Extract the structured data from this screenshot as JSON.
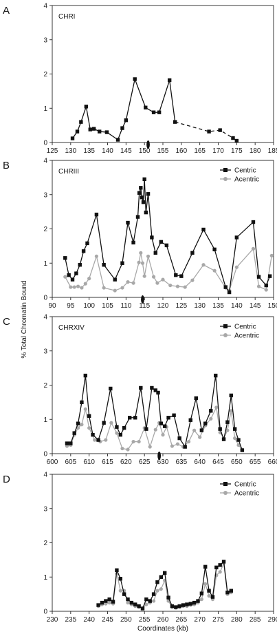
{
  "ylabel": "% Total Chromatin Bound",
  "xlabel": "Coordinates (kb)",
  "colors": {
    "centric": "#111111",
    "acentric": "#a8a8a8"
  },
  "chart_data": [
    {
      "type": "line",
      "panel": "A",
      "title": "CHRI",
      "xlim": [
        125,
        185
      ],
      "ylim": [
        0,
        4
      ],
      "xticks": [
        125,
        130,
        135,
        140,
        145,
        150,
        155,
        160,
        165,
        170,
        175,
        180,
        185
      ],
      "yticks": [
        0,
        1,
        2,
        3,
        4
      ],
      "centromere": 151,
      "legend": null,
      "series": [
        {
          "key": "centric",
          "name": "",
          "color": "#111111",
          "marker": "square",
          "x": [
            130.5,
            131.8,
            132.8,
            134.2,
            135.3,
            136.3,
            137.8,
            139.8,
            142.8,
            144.0,
            145.0,
            147.4,
            150.3,
            152.5,
            154.0,
            156.8,
            158.3,
            167.5,
            170.5,
            174.0,
            175.0
          ],
          "y": [
            0.12,
            0.32,
            0.6,
            1.05,
            0.38,
            0.4,
            0.32,
            0.3,
            0.08,
            0.42,
            0.65,
            1.85,
            1.02,
            0.88,
            0.88,
            1.82,
            0.6,
            0.32,
            0.36,
            0.13,
            0.05
          ],
          "dashed_after": 16
        }
      ]
    },
    {
      "type": "line",
      "panel": "B",
      "title": "CHRIII",
      "xlim": [
        90,
        150
      ],
      "ylim": [
        0,
        4
      ],
      "xticks": [
        90,
        95,
        100,
        105,
        110,
        115,
        120,
        125,
        130,
        135,
        140,
        145,
        150
      ],
      "yticks": [
        0,
        1,
        2,
        3,
        4
      ],
      "centromere": 114.5,
      "legend": [
        "Centric",
        "Acentric"
      ],
      "series": [
        {
          "key": "centric",
          "name": "Centric",
          "color": "#111111",
          "marker": "square",
          "x": [
            93.5,
            94.5,
            95.5,
            96.5,
            97.5,
            98.5,
            99.5,
            102.0,
            104.0,
            107.0,
            109.0,
            110.5,
            112.0,
            113.2,
            113.6,
            114.0,
            114.3,
            114.7,
            115.0,
            115.4,
            116.0,
            117.0,
            118.0,
            119.5,
            121.0,
            123.5,
            125.0,
            128.0,
            131.0,
            134.0,
            137.0,
            138.0,
            140.0,
            144.5,
            146.0,
            148.0,
            149.0
          ],
          "y": [
            1.15,
            0.65,
            0.52,
            0.7,
            0.95,
            1.35,
            1.58,
            2.42,
            0.95,
            0.52,
            1.0,
            2.18,
            1.6,
            2.35,
            3.05,
            3.2,
            2.92,
            2.78,
            3.45,
            2.48,
            3.02,
            1.75,
            1.3,
            1.62,
            1.52,
            0.65,
            0.62,
            1.3,
            1.98,
            1.4,
            0.3,
            0.15,
            1.75,
            2.2,
            0.6,
            0.35,
            0.62
          ]
        },
        {
          "key": "acentric",
          "name": "Acentric",
          "color": "#a8a8a8",
          "marker": "circle",
          "x": [
            93.5,
            95.0,
            96.0,
            97.0,
            98.0,
            99.0,
            100.0,
            102.0,
            104.0,
            107.0,
            109.0,
            110.5,
            112.0,
            113.5,
            114.0,
            114.5,
            115.0,
            116.0,
            117.5,
            118.5,
            120.0,
            122.0,
            124.0,
            126.0,
            128.0,
            131.0,
            134.0,
            137.0,
            138.0,
            140.0,
            144.5,
            146.0,
            148.0,
            149.5
          ],
          "y": [
            0.6,
            0.3,
            0.3,
            0.32,
            0.28,
            0.4,
            0.55,
            1.2,
            0.28,
            0.2,
            0.28,
            0.45,
            0.42,
            1.02,
            1.3,
            1.0,
            0.62,
            1.2,
            0.6,
            0.42,
            0.52,
            0.35,
            0.32,
            0.3,
            0.5,
            0.95,
            0.78,
            0.28,
            0.2,
            0.88,
            1.42,
            0.32,
            0.22,
            1.22
          ]
        }
      ]
    },
    {
      "type": "line",
      "panel": "C",
      "title": "CHRXIV",
      "xlim": [
        600,
        660
      ],
      "ylim": [
        0,
        4
      ],
      "xticks": [
        600,
        605,
        610,
        615,
        620,
        625,
        630,
        635,
        640,
        645,
        650,
        655,
        660
      ],
      "yticks": [
        0,
        1,
        2,
        3,
        4
      ],
      "centromere": 629,
      "legend": [
        "Centric",
        "Acentric"
      ],
      "series": [
        {
          "key": "centric",
          "name": "Centric",
          "color": "#111111",
          "marker": "square",
          "x": [
            604.0,
            605.0,
            606.0,
            607.0,
            608.0,
            609.0,
            610.0,
            611.0,
            612.5,
            614.0,
            615.8,
            617.5,
            618.5,
            619.5,
            621.0,
            622.5,
            624.0,
            625.5,
            627.0,
            628.0,
            628.7,
            629.5,
            630.5,
            631.5,
            633.0,
            634.5,
            636.0,
            637.5,
            639.0,
            640.5,
            641.5,
            643.0,
            644.3,
            645.5,
            646.5,
            647.5,
            648.5,
            649.5,
            650.5,
            651.5
          ],
          "y": [
            0.3,
            0.3,
            0.6,
            0.88,
            1.5,
            2.28,
            1.1,
            0.55,
            0.4,
            0.9,
            1.9,
            0.78,
            0.55,
            0.75,
            1.05,
            1.05,
            1.92,
            0.72,
            1.92,
            1.85,
            1.78,
            0.88,
            0.8,
            1.05,
            1.12,
            0.45,
            0.2,
            0.98,
            1.62,
            0.68,
            0.88,
            1.25,
            2.28,
            0.72,
            0.42,
            0.92,
            1.7,
            0.72,
            0.4,
            0.1
          ]
        },
        {
          "key": "acentric",
          "name": "Acentric",
          "color": "#a8a8a8",
          "marker": "circle",
          "x": [
            604.0,
            605.0,
            606.0,
            607.0,
            608.0,
            609.0,
            610.0,
            611.5,
            613.0,
            614.5,
            616.0,
            617.5,
            619.0,
            620.5,
            622.0,
            623.5,
            625.0,
            626.5,
            628.0,
            629.0,
            630.0,
            631.0,
            632.5,
            634.0,
            635.5,
            637.0,
            638.5,
            640.0,
            641.5,
            643.0,
            644.5,
            645.5,
            646.5,
            647.5,
            648.5,
            649.5,
            650.5,
            651.5
          ],
          "y": [
            0.22,
            0.25,
            0.55,
            0.75,
            0.85,
            1.3,
            0.75,
            0.4,
            0.35,
            0.4,
            0.9,
            0.6,
            0.15,
            0.12,
            0.35,
            0.35,
            0.75,
            0.2,
            0.7,
            0.9,
            0.55,
            0.78,
            0.22,
            0.28,
            0.2,
            0.35,
            0.68,
            0.48,
            0.82,
            1.02,
            1.35,
            0.62,
            0.45,
            0.68,
            1.25,
            0.45,
            0.25,
            0.12
          ]
        }
      ]
    },
    {
      "type": "line",
      "panel": "D",
      "title": "",
      "xlim": [
        230,
        290
      ],
      "ylim": [
        0,
        4
      ],
      "xticks": [
        230,
        235,
        240,
        245,
        250,
        255,
        260,
        265,
        270,
        275,
        280,
        285,
        290
      ],
      "yticks": [
        0,
        1,
        2,
        3,
        4
      ],
      "centromere": null,
      "legend": [
        "Centric",
        "Acentric"
      ],
      "series": [
        {
          "key": "centric",
          "name": "Centric",
          "color": "#111111",
          "marker": "square",
          "x": [
            242.5,
            243.5,
            244.5,
            245.5,
            246.5,
            247.5,
            248.5,
            249.5,
            250.5,
            251.5,
            252.5,
            253.5,
            254.5,
            255.5,
            256.5,
            257.5,
            258.5,
            259.5,
            260.5,
            261.5,
            262.5,
            263.5,
            264.5,
            265.5,
            266.5,
            267.5,
            268.5,
            269.5,
            270.5,
            271.5,
            272.5,
            273.5,
            274.5,
            275.5,
            276.5,
            277.5,
            278.5
          ],
          "y": [
            0.18,
            0.25,
            0.3,
            0.35,
            0.28,
            1.2,
            0.95,
            0.5,
            0.35,
            0.25,
            0.2,
            0.15,
            0.08,
            0.35,
            0.3,
            0.5,
            0.85,
            1.0,
            1.12,
            0.4,
            0.15,
            0.12,
            0.15,
            0.18,
            0.2,
            0.22,
            0.25,
            0.3,
            0.52,
            1.3,
            0.6,
            0.42,
            1.28,
            1.35,
            1.45,
            0.55,
            0.6
          ]
        },
        {
          "key": "acentric",
          "name": "Acentric",
          "color": "#a8a8a8",
          "marker": "circle",
          "x": [
            242.5,
            243.5,
            244.5,
            245.5,
            246.5,
            247.5,
            248.5,
            249.5,
            250.5,
            251.5,
            252.5,
            253.5,
            254.5,
            255.5,
            256.5,
            257.5,
            258.5,
            259.5,
            260.5,
            261.5,
            262.5,
            263.5,
            264.5,
            265.5,
            266.5,
            267.5,
            268.5,
            269.5,
            270.5,
            271.5,
            272.5,
            273.5,
            274.5,
            275.5,
            276.5,
            277.5,
            278.5
          ],
          "y": [
            0.15,
            0.2,
            0.22,
            0.25,
            0.22,
            1.1,
            0.6,
            0.6,
            0.25,
            0.2,
            0.15,
            0.12,
            0.1,
            0.2,
            0.25,
            0.3,
            0.6,
            0.65,
            0.9,
            0.3,
            0.12,
            0.1,
            0.12,
            0.15,
            0.15,
            0.18,
            0.2,
            0.25,
            0.35,
            0.8,
            0.45,
            0.35,
            1.05,
            1.15,
            1.4,
            0.5,
            0.55
          ]
        }
      ]
    }
  ]
}
